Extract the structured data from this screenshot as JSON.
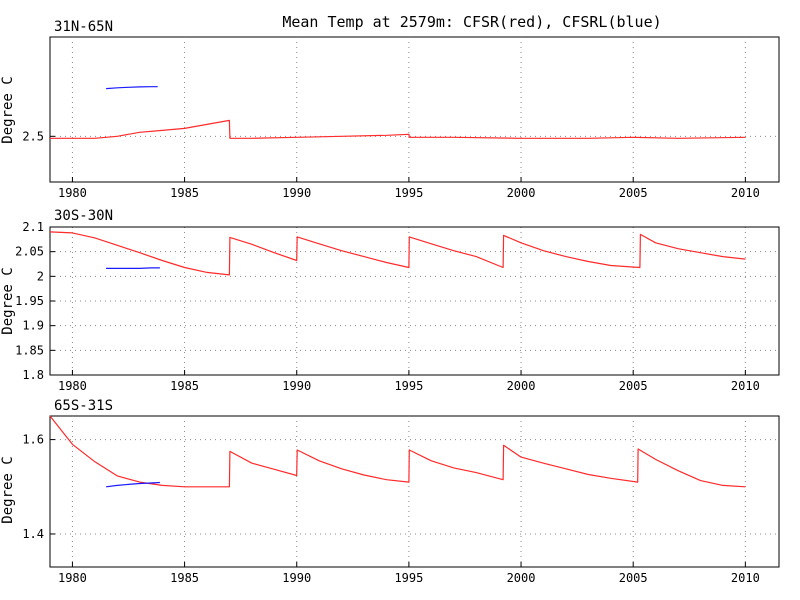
{
  "title": "Mean Temp at 2579m: CFSR(red), CFSRL(blue)",
  "colors": {
    "cfsr": "#ff2a2a",
    "cfsrl": "#1a1aff",
    "axis": "#000000",
    "grid": "#888888"
  },
  "chart_data": [
    {
      "type": "line",
      "panel_label": "31N-65N",
      "ylabel": "Degree C",
      "xlim": [
        1979.0,
        2011.5
      ],
      "ylim": [
        2.27,
        3.0
      ],
      "xticks": [
        "1980",
        "1985",
        "1990",
        "1995",
        "2000",
        "2005",
        "2010"
      ],
      "yticks": [
        "2.5"
      ],
      "grid": true,
      "series": [
        {
          "name": "CFSR",
          "color": "#ff2a2a",
          "x": [
            1979.0,
            1980.0,
            1981.0,
            1982.0,
            1983.0,
            1984.0,
            1985.0,
            1986.0,
            1987.0,
            1987.02,
            1988.0,
            1990.0,
            1992.0,
            1994.0,
            1995.0,
            1995.02,
            1997.0,
            2000.0,
            2003.0,
            2005.0,
            2007.0,
            2010.0
          ],
          "y": [
            2.49,
            2.49,
            2.49,
            2.5,
            2.52,
            2.53,
            2.54,
            2.56,
            2.58,
            2.49,
            2.49,
            2.495,
            2.5,
            2.505,
            2.51,
            2.495,
            2.495,
            2.49,
            2.49,
            2.495,
            2.49,
            2.495
          ]
        },
        {
          "name": "CFSRL",
          "color": "#1a1aff",
          "x": [
            1981.5,
            1982.0,
            1982.5,
            1983.0,
            1983.5,
            1983.8
          ],
          "y": [
            2.74,
            2.744,
            2.747,
            2.749,
            2.75,
            2.75
          ]
        }
      ]
    },
    {
      "type": "line",
      "panel_label": "30S-30N",
      "ylabel": "Degree C",
      "xlim": [
        1979.0,
        2011.5
      ],
      "ylim": [
        1.8,
        2.1
      ],
      "xticks": [
        "1980",
        "1985",
        "1990",
        "1995",
        "2000",
        "2005",
        "2010"
      ],
      "yticks": [
        "1.8",
        "1.85",
        "1.9",
        "1.95",
        "2",
        "2.05",
        "2.1"
      ],
      "grid": true,
      "series": [
        {
          "name": "CFSR",
          "color": "#ff2a2a",
          "x": [
            1979.0,
            1980.0,
            1981.0,
            1982.0,
            1983.0,
            1984.0,
            1985.0,
            1986.0,
            1987.0,
            1987.02,
            1988.0,
            1989.0,
            1990.0,
            1990.02,
            1991.0,
            1992.0,
            1993.0,
            1994.0,
            1995.0,
            1995.02,
            1996.0,
            1997.0,
            1998.0,
            1999.2,
            1999.22,
            2000.0,
            2001.0,
            2002.0,
            2003.0,
            2004.0,
            2005.3,
            2005.32,
            2006.0,
            2007.0,
            2008.0,
            2009.0,
            2010.0
          ],
          "y": [
            2.09,
            2.088,
            2.078,
            2.063,
            2.048,
            2.032,
            2.018,
            2.008,
            2.003,
            2.079,
            2.065,
            2.048,
            2.032,
            2.08,
            2.066,
            2.052,
            2.04,
            2.028,
            2.018,
            2.08,
            2.066,
            2.052,
            2.04,
            2.018,
            2.083,
            2.068,
            2.052,
            2.04,
            2.03,
            2.022,
            2.018,
            2.085,
            2.068,
            2.056,
            2.048,
            2.04,
            2.035
          ]
        },
        {
          "name": "CFSRL",
          "color": "#1a1aff",
          "x": [
            1981.5,
            1982.0,
            1982.5,
            1983.0,
            1983.5,
            1983.9
          ],
          "y": [
            2.016,
            2.016,
            2.016,
            2.016,
            2.017,
            2.017
          ]
        }
      ]
    },
    {
      "type": "line",
      "panel_label": "65S-31S",
      "ylabel": "Degree C",
      "xlim": [
        1979.0,
        2011.5
      ],
      "ylim": [
        1.33,
        1.65
      ],
      "xticks": [
        "1980",
        "1985",
        "1990",
        "1995",
        "2000",
        "2005",
        "2010"
      ],
      "yticks": [
        "1.4",
        "1.6"
      ],
      "grid": true,
      "series": [
        {
          "name": "CFSR",
          "color": "#ff2a2a",
          "x": [
            1979.0,
            1980.0,
            1981.0,
            1982.0,
            1983.0,
            1984.0,
            1985.0,
            1986.0,
            1987.0,
            1987.02,
            1988.0,
            1989.0,
            1990.0,
            1990.02,
            1991.0,
            1992.0,
            1993.0,
            1994.0,
            1995.0,
            1995.02,
            1996.0,
            1997.0,
            1998.0,
            1999.2,
            1999.22,
            2000.0,
            2001.0,
            2002.0,
            2003.0,
            2004.0,
            2005.2,
            2005.22,
            2006.0,
            2007.0,
            2008.0,
            2009.0,
            2010.0
          ],
          "y": [
            1.65,
            1.59,
            1.553,
            1.523,
            1.51,
            1.503,
            1.5,
            1.5,
            1.5,
            1.575,
            1.55,
            1.537,
            1.524,
            1.578,
            1.555,
            1.538,
            1.525,
            1.515,
            1.51,
            1.578,
            1.555,
            1.54,
            1.53,
            1.515,
            1.588,
            1.563,
            1.55,
            1.538,
            1.526,
            1.518,
            1.51,
            1.58,
            1.558,
            1.534,
            1.513,
            1.503,
            1.5
          ]
        },
        {
          "name": "CFSRL",
          "color": "#1a1aff",
          "x": [
            1981.5,
            1982.0,
            1982.5,
            1983.0,
            1983.5,
            1983.9
          ],
          "y": [
            1.5,
            1.503,
            1.505,
            1.507,
            1.508,
            1.509
          ]
        }
      ]
    }
  ]
}
